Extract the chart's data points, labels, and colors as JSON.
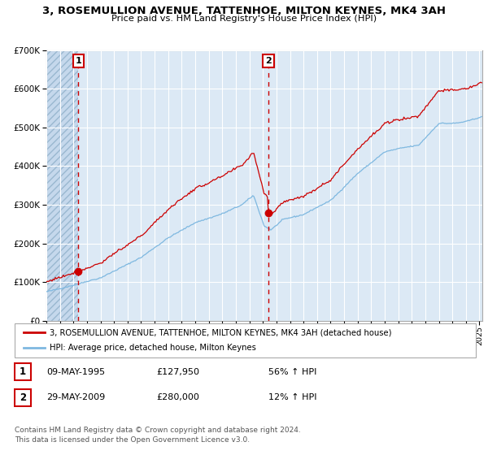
{
  "title": "3, ROSEMULLION AVENUE, TATTENHOE, MILTON KEYNES, MK4 3AH",
  "subtitle": "Price paid vs. HM Land Registry's House Price Index (HPI)",
  "legend_line1": "3, ROSEMULLION AVENUE, TATTENHOE, MILTON KEYNES, MK4 3AH (detached house)",
  "legend_line2": "HPI: Average price, detached house, Milton Keynes",
  "sale1_date": "09-MAY-1995",
  "sale1_price": "£127,950",
  "sale1_hpi": "56% ↑ HPI",
  "sale2_date": "29-MAY-2009",
  "sale2_price": "£280,000",
  "sale2_hpi": "12% ↑ HPI",
  "copyright": "Contains HM Land Registry data © Crown copyright and database right 2024.\nThis data is licensed under the Open Government Licence v3.0.",
  "hpi_color": "#7eb8e0",
  "price_color": "#cc0000",
  "marker_color": "#cc0000",
  "dashed_line_color": "#cc0000",
  "background_plot": "#dce9f5",
  "background_hatch_color": "#c5d8ec",
  "grid_color": "#ffffff",
  "ylim": [
    0,
    700000
  ],
  "yticks": [
    0,
    100000,
    200000,
    300000,
    400000,
    500000,
    600000,
    700000
  ],
  "sale1_x": 1995.37,
  "sale1_y": 127950,
  "sale2_x": 2009.41,
  "sale2_y": 280000,
  "xmin": 1993,
  "xmax": 2025.2
}
